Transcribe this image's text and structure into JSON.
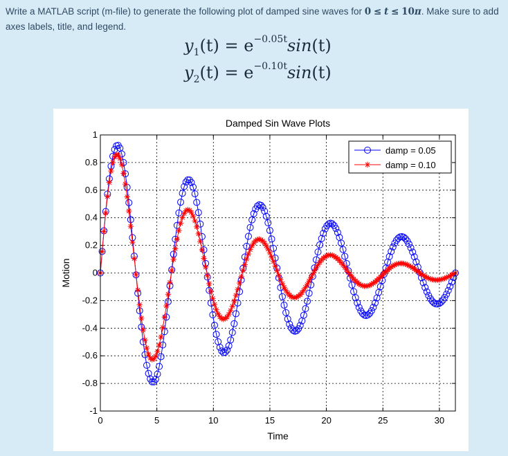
{
  "question": {
    "text_before": "Write a MATLAB script (m-file) to generate the following plot of damped sine waves for ",
    "range_lo": "0",
    "range_le1": "≤",
    "range_t": "t",
    "range_le2": "≤",
    "range_hi": "10",
    "range_pi": "π",
    "text_after": ". Make sure to add axes labels, title, and legend."
  },
  "equations": [
    {
      "lhs": "y",
      "sub": "1",
      "t": "(t)",
      "eq": " = e",
      "exp": "−0.05t",
      "fn": "sin",
      "arg": "(t)"
    },
    {
      "lhs": "y",
      "sub": "2",
      "t": "(t)",
      "eq": " = e",
      "exp": "−0.10t",
      "fn": "sin",
      "arg": "(t)"
    }
  ],
  "chart_data": {
    "type": "line",
    "title": "Damped Sin Wave Plots",
    "xlabel": "Time",
    "ylabel": "Motion",
    "xlim": [
      0,
      31.4159
    ],
    "ylim": [
      -1,
      1
    ],
    "xticks": [
      0,
      5,
      10,
      15,
      20,
      25,
      30
    ],
    "yticks": [
      -1,
      -0.8,
      -0.6,
      -0.4,
      -0.2,
      0,
      0.2,
      0.4,
      0.6,
      0.8,
      1
    ],
    "ytick_labels": [
      "-1",
      "-0.8",
      "-0.6",
      "-0.4",
      "-0.2",
      "0",
      "0.2",
      "0.4",
      "0.6",
      "0.8",
      "1"
    ],
    "grid": true,
    "legend_position": "top-right",
    "t_start": 0,
    "t_end": 31.4159,
    "n_points": 200,
    "series": [
      {
        "name": "damp = 0.05",
        "damping": 0.05,
        "color": "#0000ff",
        "marker": "circle"
      },
      {
        "name": "damp = 0.10",
        "damping": 0.1,
        "color": "#ff0000",
        "marker": "asterisk"
      }
    ]
  }
}
